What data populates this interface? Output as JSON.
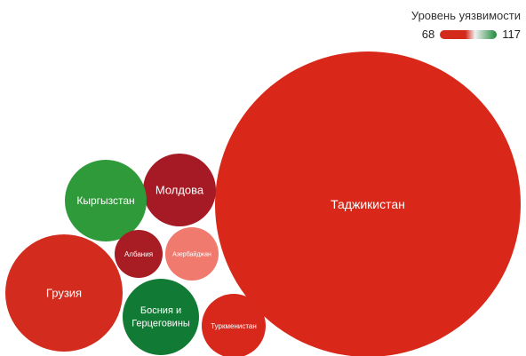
{
  "chart_data": {
    "type": "bubble",
    "title": "",
    "legend": {
      "title": "Уровень уязвимости",
      "min_label": "68",
      "max_label": "117",
      "min_color": "#d42a1c",
      "mid_color": "#f0f0f0",
      "max_color": "#1e8a3c"
    },
    "points": [
      {
        "label": "Таджикистан",
        "color": "#d9281a",
        "size_rank": 1
      },
      {
        "label": "Грузия",
        "color": "#d32b1e",
        "size_rank": 2
      },
      {
        "label": "Молдова",
        "color": "#a51a24",
        "size_rank": 3
      },
      {
        "label": "Кыргызстан",
        "color": "#2f9a3a",
        "size_rank": 4
      },
      {
        "label": "Босния и Герцеговины",
        "color": "#117a34",
        "size_rank": 5
      },
      {
        "label": "Туркменистан",
        "color": "#d8281c",
        "size_rank": 6
      },
      {
        "label": "Азербайджан",
        "color": "#f07a6e",
        "size_rank": 7
      },
      {
        "label": "Албания",
        "color": "#a81c24",
        "size_rank": 8
      }
    ]
  }
}
